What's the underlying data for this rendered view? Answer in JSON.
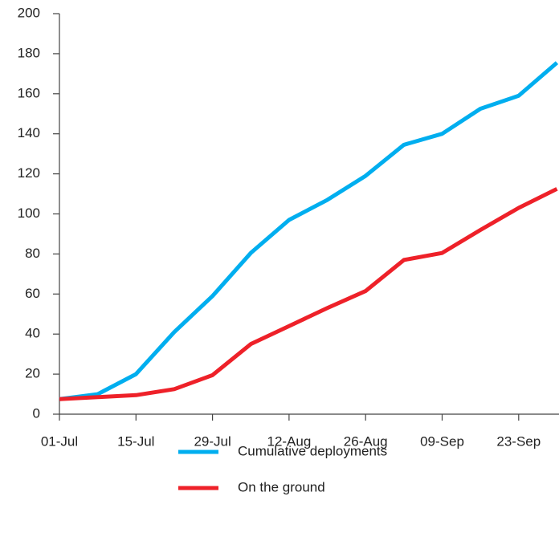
{
  "chart_data": {
    "type": "line",
    "categories": [
      "01-Jul",
      null,
      "15-Jul",
      null,
      "29-Jul",
      null,
      "12-Aug",
      null,
      "26-Aug",
      null,
      "09-Sep",
      null,
      "23-Sep",
      null
    ],
    "series": [
      {
        "name": "Cumulative deployments",
        "color": "#00aeef",
        "values": [
          7.5,
          10,
          20,
          41,
          59,
          80.5,
          97,
          107,
          119,
          134.5,
          140,
          152.5,
          159,
          175.5
        ]
      },
      {
        "name": "On the ground",
        "color": "#ee2129",
        "values": [
          7.5,
          8.5,
          9.5,
          12.5,
          19.5,
          35,
          44,
          53,
          61.5,
          77,
          80.5,
          92,
          103,
          112.5
        ]
      }
    ],
    "ylim": [
      0,
      200
    ],
    "yticks": [
      0,
      20,
      40,
      60,
      80,
      100,
      120,
      140,
      160,
      180,
      200
    ],
    "grid": false
  }
}
